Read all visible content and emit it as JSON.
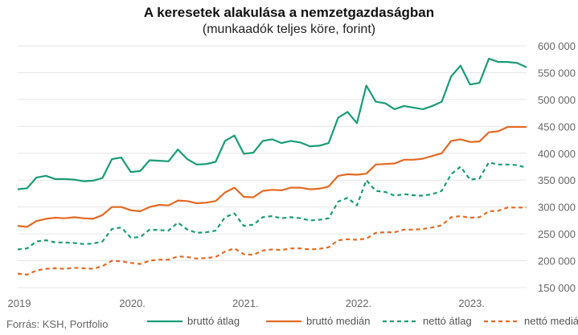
{
  "chart_data": {
    "type": "line",
    "title": "A keresetek alakulása a nemzetgazdaságban",
    "subtitle": "(munkaadók teljes köre, forint)",
    "x_labels": [
      "2019",
      "2020.",
      "2021.",
      "2022.",
      "2023."
    ],
    "y_ticks": [
      "150 000",
      "200 000",
      "250 000",
      "300 000",
      "350 000",
      "400 000",
      "450 000",
      "500 000",
      "550 000",
      "600 000"
    ],
    "ylim": [
      150000,
      600000
    ],
    "x_start": 2019.0,
    "months": 55,
    "source": "Forrás: KSH, Portfolio",
    "legend_position": "bottom",
    "grid": true,
    "series": [
      {
        "name": "bruttó átlag",
        "color": "#1a9b78",
        "dash": false,
        "values": [
          333000,
          335000,
          355000,
          358000,
          352000,
          352000,
          351000,
          348000,
          349000,
          354000,
          389000,
          392000,
          365000,
          367000,
          387000,
          386000,
          385000,
          407000,
          389000,
          379000,
          380000,
          384000,
          423000,
          433000,
          399000,
          401000,
          423000,
          426000,
          419000,
          423000,
          420000,
          413000,
          414000,
          419000,
          466000,
          477000,
          456000,
          526000,
          496000,
          493000,
          482000,
          488000,
          485000,
          482000,
          488000,
          496000,
          543000,
          563000,
          528000,
          531000,
          576000,
          570000,
          570000,
          568000,
          560000
        ]
      },
      {
        "name": "bruttó medián",
        "color": "#e36a23",
        "dash": false,
        "values": [
          265000,
          263000,
          274000,
          278000,
          280000,
          279000,
          281000,
          279000,
          278000,
          285000,
          300000,
          300000,
          294000,
          292000,
          300000,
          304000,
          303000,
          312000,
          311000,
          307000,
          308000,
          311000,
          327000,
          336000,
          319000,
          318000,
          330000,
          332000,
          331000,
          336000,
          336000,
          333000,
          334000,
          338000,
          358000,
          361000,
          360000,
          362000,
          379000,
          380000,
          381000,
          388000,
          388000,
          390000,
          395000,
          400000,
          423000,
          426000,
          421000,
          422000,
          439000,
          441000,
          449000,
          449000,
          449000
        ]
      },
      {
        "name": "nettó átlag",
        "color": "#1a9b78",
        "dash": true,
        "values": [
          221000,
          223000,
          236000,
          238000,
          234000,
          234000,
          233000,
          231000,
          232000,
          236000,
          259000,
          262000,
          243000,
          244000,
          258000,
          257000,
          256000,
          271000,
          258000,
          252000,
          253000,
          256000,
          281000,
          288000,
          265000,
          267000,
          281000,
          283000,
          279000,
          281000,
          279000,
          275000,
          276000,
          279000,
          310000,
          317000,
          303000,
          350000,
          330000,
          328000,
          321000,
          324000,
          322000,
          321000,
          324000,
          330000,
          361000,
          375000,
          351000,
          353000,
          383000,
          379000,
          379000,
          378000,
          373000
        ]
      },
      {
        "name": "nettó medián",
        "color": "#e36a23",
        "dash": true,
        "values": [
          176000,
          174000,
          182000,
          185000,
          186000,
          185000,
          187000,
          186000,
          185000,
          190000,
          200000,
          199000,
          196000,
          194000,
          200000,
          202000,
          202000,
          208000,
          207000,
          204000,
          205000,
          207000,
          217000,
          223000,
          212000,
          211000,
          219000,
          221000,
          220000,
          223000,
          223000,
          221000,
          222000,
          225000,
          238000,
          240000,
          239000,
          241000,
          252000,
          253000,
          253000,
          258000,
          258000,
          259000,
          262000,
          266000,
          281000,
          283000,
          280000,
          281000,
          292000,
          293000,
          299000,
          299000,
          299000
        ]
      }
    ]
  }
}
